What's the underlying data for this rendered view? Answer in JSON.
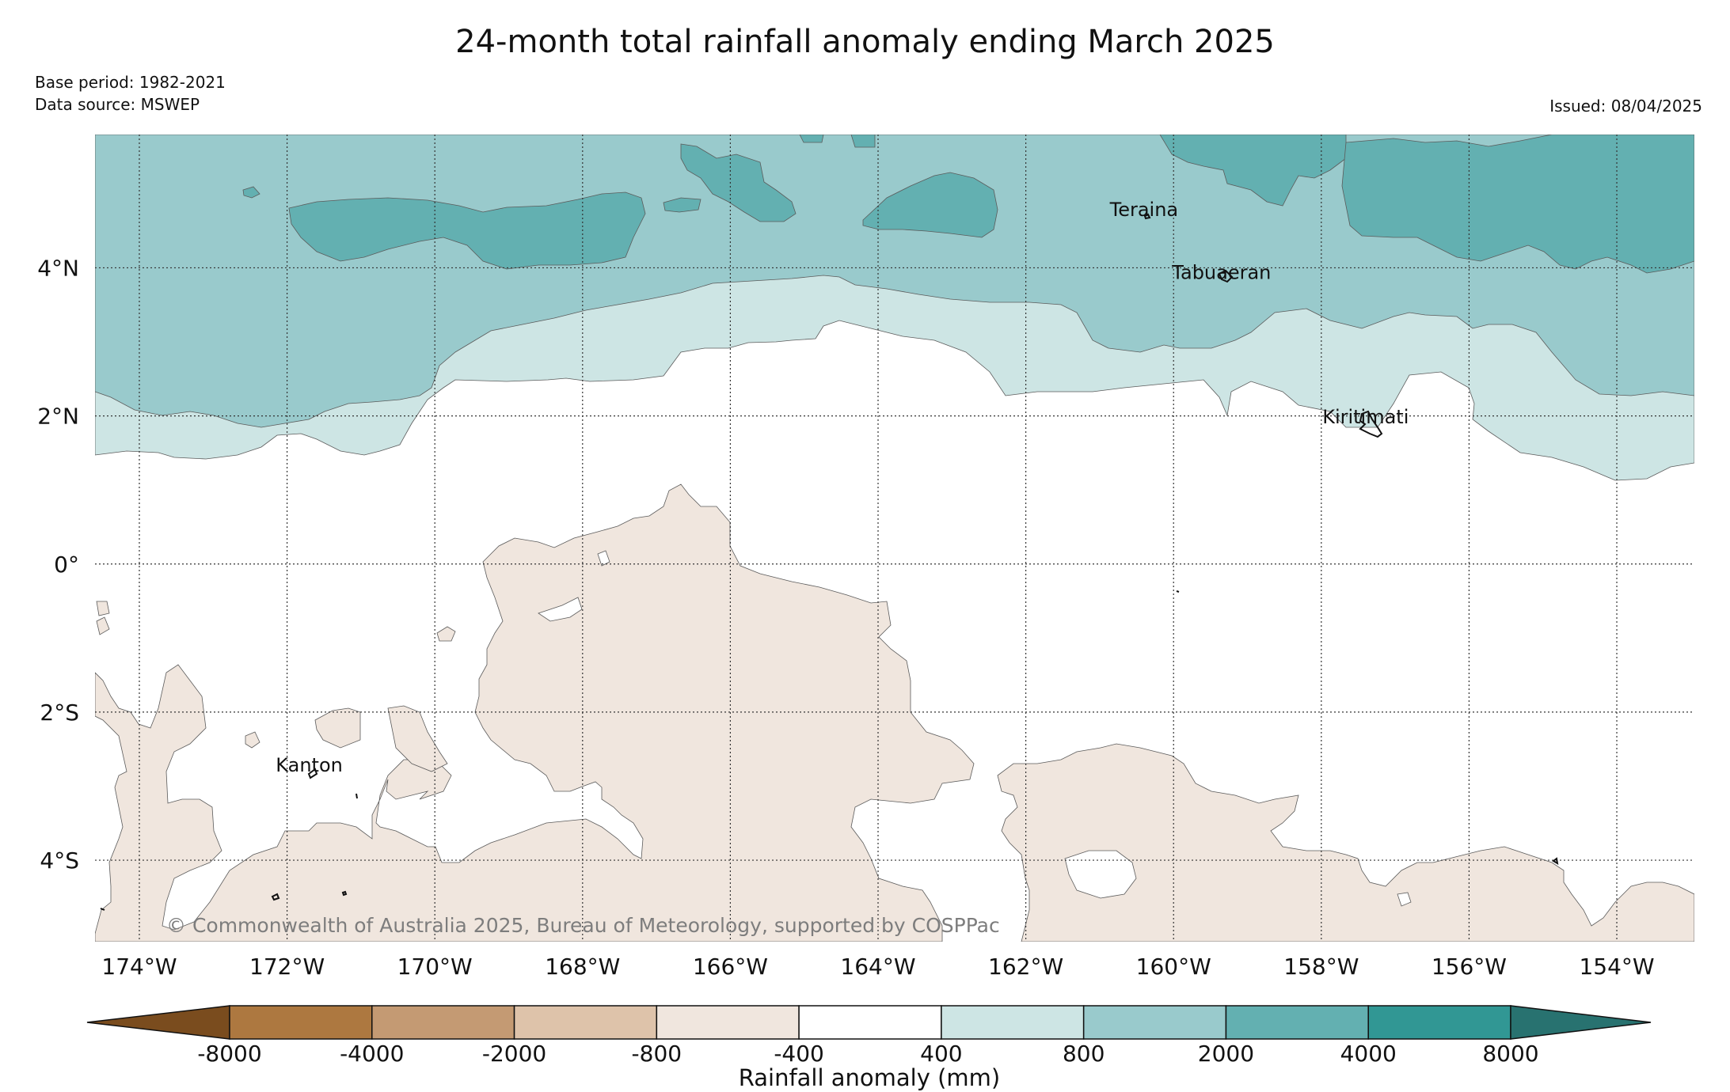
{
  "title": "24-month total rainfall anomaly ending March 2025",
  "meta": {
    "base_period": "Base period: 1982-2021",
    "data_source": "Data source: MSWEP",
    "issued": "Issued: 08/04/2025"
  },
  "axes": {
    "lon_labels": [
      "174°W",
      "172°W",
      "170°W",
      "168°W",
      "166°W",
      "164°W",
      "162°W",
      "160°W",
      "158°W",
      "156°W",
      "154°W"
    ],
    "lat_labels": [
      "4°N",
      "2°N",
      "0°",
      "2°S",
      "4°S"
    ]
  },
  "places": [
    {
      "name": "Teraina",
      "lon": -160.4,
      "lat": 4.7
    },
    {
      "name": "Tabuaeran",
      "lon": -159.35,
      "lat": 3.85
    },
    {
      "name": "Kiritimati",
      "lon": -157.4,
      "lat": 1.9
    },
    {
      "name": "Kanton",
      "lon": -171.7,
      "lat": -2.8
    }
  ],
  "copyright": "© Commonwealth of Australia 2025, Bureau of Meteorology, supported by COSPPac",
  "colorbar": {
    "label": "Rainfall anomaly (mm)",
    "ticks": [
      "-8000",
      "-4000",
      "-2000",
      "-800",
      "-400",
      "400",
      "800",
      "2000",
      "4000",
      "8000"
    ],
    "colors": [
      "#7a4c1e",
      "#ad7840",
      "#c49a73",
      "#dec3aa",
      "#f0e6de",
      "#ffffff",
      "#cde5e4",
      "#99cacc",
      "#63b0b1",
      "#319794",
      "#287270"
    ]
  }
}
